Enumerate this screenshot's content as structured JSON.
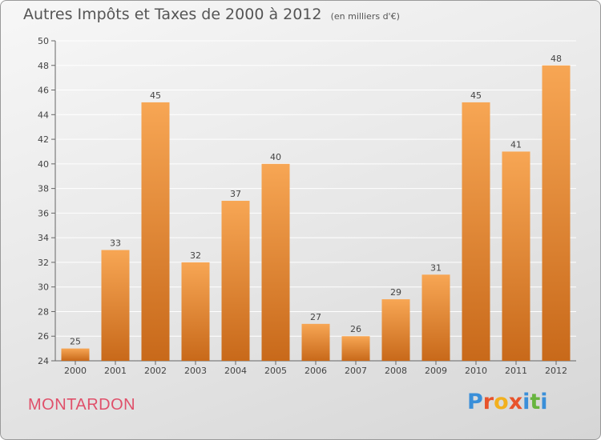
{
  "header": {
    "title": "Autres Impôts et Taxes de 2000 à 2012",
    "unit": "(en milliers d'€)"
  },
  "footer": {
    "commune": "MONTARDON",
    "brand": "Proxiti"
  },
  "colors": {
    "bar_top": "#f7a654",
    "bar_bottom": "#c8691a",
    "grid": "#ffffff",
    "brand_text": "#e0506a",
    "logo_letters": [
      "#3a8fd9",
      "#e8532b",
      "#f2b01e",
      "#e8532b",
      "#3a8fd9",
      "#67b43f",
      "#3a8fd9"
    ]
  },
  "chart_data": {
    "type": "bar",
    "title": "Autres Impôts et Taxes de 2000 à 2012",
    "subtitle": "(en milliers d'€)",
    "categories": [
      "2000",
      "2001",
      "2002",
      "2003",
      "2004",
      "2005",
      "2006",
      "2007",
      "2008",
      "2009",
      "2010",
      "2011",
      "2012"
    ],
    "values": [
      25,
      33,
      45,
      32,
      37,
      40,
      27,
      26,
      29,
      31,
      45,
      41,
      48
    ],
    "ylim": [
      24,
      50
    ],
    "yticks": [
      24,
      26,
      28,
      30,
      32,
      34,
      36,
      38,
      40,
      42,
      44,
      46,
      48,
      50
    ],
    "grid": true,
    "data_labels": true
  }
}
